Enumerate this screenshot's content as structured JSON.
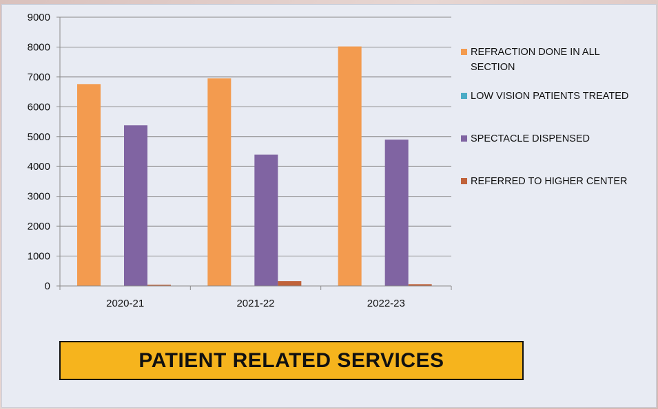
{
  "chart_data": {
    "type": "bar",
    "categories": [
      "2020-21",
      "2021-22",
      "2022-23"
    ],
    "series": [
      {
        "name": "REFRACTION DONE IN ALL SECTION",
        "color": "#f39b4f",
        "values": [
          6760,
          6950,
          8020
        ]
      },
      {
        "name": "LOW VISION PATIENTS TREATED",
        "color": "#4bacc6",
        "values": [
          0,
          0,
          0
        ]
      },
      {
        "name": "SPECTACLE DISPENSED",
        "color": "#8064a2",
        "values": [
          5380,
          4400,
          4900
        ]
      },
      {
        "name": "REFERRED TO HIGHER CENTER",
        "color": "#c0623a",
        "values": [
          40,
          160,
          60
        ]
      }
    ],
    "ylim": [
      0,
      9000
    ],
    "yticks": [
      0,
      1000,
      2000,
      3000,
      4000,
      5000,
      6000,
      7000,
      8000,
      9000
    ],
    "grid": true,
    "legend_position": "right"
  },
  "title_banner": "PATIENT RELATED SERVICES",
  "colors": {
    "panel_background": "#e8ebf3",
    "banner_fill": "#f6b41d",
    "gridline": "#8a8a8a"
  }
}
